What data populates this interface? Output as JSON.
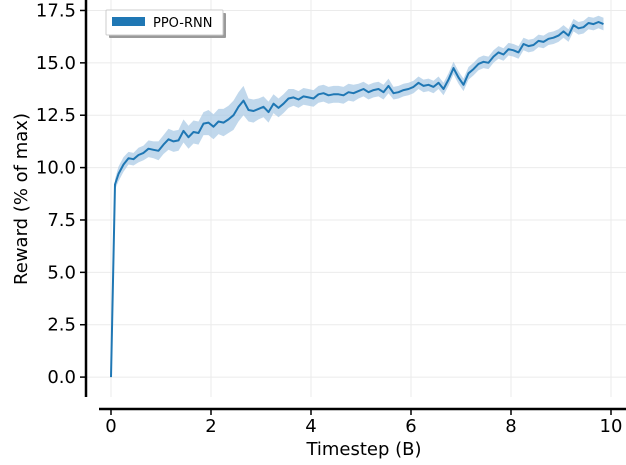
{
  "chart_data": {
    "type": "line",
    "xlabel": "Timestep (B)",
    "ylabel": "Reward (% of max)",
    "xlim": [
      -0.5,
      10.3
    ],
    "ylim": [
      -0.95,
      18.0
    ],
    "x_ticks": [
      0,
      2,
      4,
      6,
      8,
      10
    ],
    "y_ticks": [
      0.0,
      2.5,
      5.0,
      7.5,
      10.0,
      12.5,
      15.0,
      17.5
    ],
    "x_tick_labels": [
      "0",
      "2",
      "4",
      "6",
      "8",
      "10"
    ],
    "y_tick_labels": [
      "0.0",
      "2.5",
      "5.0",
      "7.5",
      "10.0",
      "12.5",
      "15.0",
      "17.5"
    ],
    "grid": true,
    "legend_position": "top-left",
    "series": [
      {
        "name": "PPO-RNN",
        "color": "#1f77b4",
        "band_color": "#a6c8e4",
        "x": [
          0,
          0.08,
          0.15,
          0.25,
          0.35,
          0.45,
          0.55,
          0.65,
          0.75,
          0.85,
          0.95,
          1.05,
          1.15,
          1.25,
          1.35,
          1.45,
          1.55,
          1.65,
          1.75,
          1.85,
          1.95,
          2.05,
          2.15,
          2.25,
          2.35,
          2.45,
          2.55,
          2.65,
          2.75,
          2.85,
          2.95,
          3.05,
          3.15,
          3.25,
          3.35,
          3.45,
          3.55,
          3.65,
          3.75,
          3.85,
          3.95,
          4.05,
          4.15,
          4.25,
          4.35,
          4.45,
          4.55,
          4.65,
          4.75,
          4.85,
          4.95,
          5.05,
          5.15,
          5.25,
          5.35,
          5.45,
          5.55,
          5.65,
          5.75,
          5.85,
          5.95,
          6.05,
          6.15,
          6.25,
          6.35,
          6.45,
          6.55,
          6.65,
          6.75,
          6.85,
          6.95,
          7.05,
          7.15,
          7.25,
          7.35,
          7.45,
          7.55,
          7.65,
          7.75,
          7.85,
          7.95,
          8.05,
          8.15,
          8.25,
          8.35,
          8.45,
          8.55,
          8.65,
          8.75,
          8.85,
          8.95,
          9.05,
          9.15,
          9.25,
          9.35,
          9.45,
          9.55,
          9.65,
          9.75,
          9.85
        ],
        "y": [
          0.0,
          9.2,
          9.7,
          10.15,
          10.45,
          10.4,
          10.6,
          10.7,
          10.9,
          10.85,
          10.8,
          11.1,
          11.35,
          11.25,
          11.3,
          11.75,
          11.45,
          11.7,
          11.65,
          12.1,
          12.15,
          11.95,
          12.2,
          12.15,
          12.3,
          12.5,
          12.9,
          13.2,
          12.75,
          12.7,
          12.8,
          12.9,
          12.65,
          13.05,
          12.85,
          13.05,
          13.3,
          13.35,
          13.25,
          13.4,
          13.35,
          13.3,
          13.5,
          13.55,
          13.45,
          13.5,
          13.5,
          13.45,
          13.6,
          13.55,
          13.65,
          13.75,
          13.6,
          13.7,
          13.75,
          13.6,
          13.9,
          13.55,
          13.6,
          13.7,
          13.75,
          13.85,
          14.05,
          13.9,
          13.95,
          13.85,
          14.05,
          13.75,
          14.2,
          14.75,
          14.3,
          13.95,
          14.5,
          14.7,
          14.95,
          15.05,
          15.0,
          15.3,
          15.5,
          15.4,
          15.65,
          15.6,
          15.5,
          15.9,
          15.8,
          15.85,
          16.05,
          16.0,
          16.15,
          16.2,
          16.3,
          16.5,
          16.3,
          16.8,
          16.65,
          16.7,
          16.9,
          16.85,
          16.95,
          16.85
        ],
        "band": [
          0,
          0.25,
          0.35,
          0.35,
          0.3,
          0.3,
          0.35,
          0.35,
          0.4,
          0.4,
          0.45,
          0.45,
          0.5,
          0.5,
          0.5,
          0.55,
          0.55,
          0.55,
          0.55,
          0.55,
          0.6,
          0.6,
          0.6,
          0.65,
          0.65,
          0.7,
          0.7,
          0.7,
          0.55,
          0.55,
          0.5,
          0.5,
          0.5,
          0.45,
          0.45,
          0.45,
          0.45,
          0.4,
          0.4,
          0.4,
          0.4,
          0.4,
          0.4,
          0.4,
          0.4,
          0.4,
          0.4,
          0.4,
          0.4,
          0.4,
          0.35,
          0.35,
          0.35,
          0.35,
          0.35,
          0.35,
          0.35,
          0.3,
          0.3,
          0.3,
          0.3,
          0.3,
          0.3,
          0.3,
          0.3,
          0.3,
          0.3,
          0.3,
          0.3,
          0.3,
          0.3,
          0.3,
          0.3,
          0.3,
          0.3,
          0.3,
          0.3,
          0.3,
          0.3,
          0.3,
          0.3,
          0.3,
          0.3,
          0.3,
          0.3,
          0.3,
          0.3,
          0.3,
          0.3,
          0.3,
          0.3,
          0.3,
          0.3,
          0.3,
          0.3,
          0.3,
          0.3,
          0.3,
          0.3,
          0.3
        ]
      }
    ]
  }
}
